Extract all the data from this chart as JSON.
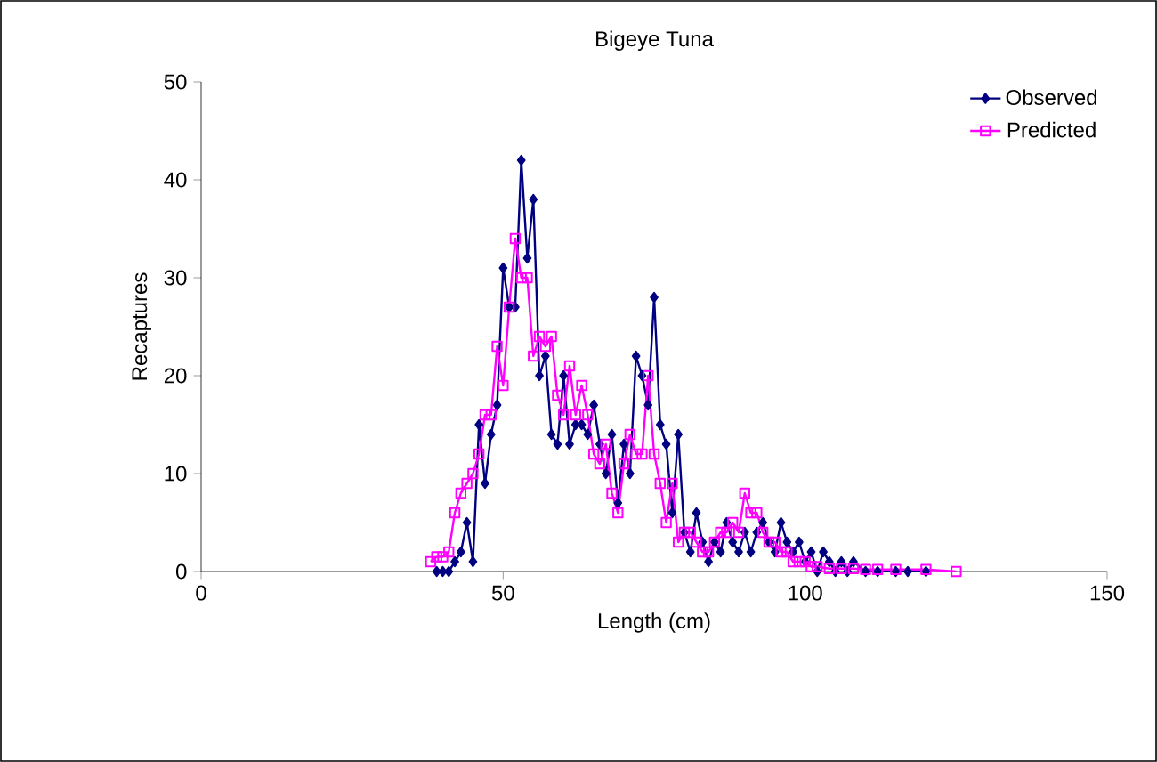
{
  "chart_data": {
    "type": "line",
    "title": "Bigeye Tuna",
    "xlabel": "Length (cm)",
    "ylabel": "Recaptures",
    "xlim": [
      0,
      150
    ],
    "xticks": [
      0,
      50,
      100,
      150
    ],
    "ylim": [
      0,
      50
    ],
    "yticks": [
      0,
      10,
      20,
      30,
      40,
      50
    ],
    "grid": false,
    "legend": "top right",
    "series": [
      {
        "name": "Observed",
        "color": "#000080",
        "marker": "diamond",
        "x": [
          39,
          40,
          41,
          42,
          43,
          44,
          45,
          46,
          47,
          48,
          49,
          50,
          51,
          52,
          53,
          54,
          55,
          56,
          57,
          58,
          59,
          60,
          61,
          62,
          63,
          64,
          65,
          66,
          67,
          68,
          69,
          70,
          71,
          72,
          73,
          74,
          75,
          76,
          77,
          78,
          79,
          80,
          81,
          82,
          83,
          84,
          85,
          86,
          87,
          88,
          89,
          90,
          91,
          92,
          93,
          94,
          95,
          96,
          97,
          98,
          99,
          100,
          101,
          102,
          103,
          104,
          105,
          106,
          107,
          108,
          110,
          112,
          115,
          117,
          120
        ],
        "values": [
          0,
          0,
          0,
          1,
          2,
          5,
          1,
          15,
          9,
          14,
          17,
          31,
          27,
          27,
          42,
          32,
          38,
          20,
          22,
          14,
          13,
          20,
          13,
          15,
          15,
          14,
          17,
          13,
          10,
          14,
          7,
          13,
          10,
          22,
          20,
          17,
          28,
          15,
          13,
          6,
          14,
          4,
          2,
          6,
          3,
          1,
          3,
          2,
          5,
          3,
          2,
          4,
          2,
          4,
          5,
          3,
          2,
          5,
          3,
          2,
          3,
          1,
          2,
          0,
          2,
          1,
          0,
          1,
          0,
          1,
          0,
          0,
          0,
          0,
          0
        ]
      },
      {
        "name": "Predicted",
        "color": "#ff00ff",
        "marker": "square",
        "x": [
          38,
          39,
          40,
          41,
          42,
          43,
          44,
          45,
          46,
          47,
          48,
          49,
          50,
          51,
          52,
          53,
          54,
          55,
          56,
          57,
          58,
          59,
          60,
          61,
          62,
          63,
          64,
          65,
          66,
          67,
          68,
          69,
          70,
          71,
          72,
          73,
          74,
          75,
          76,
          77,
          78,
          79,
          80,
          81,
          82,
          83,
          84,
          85,
          86,
          87,
          88,
          89,
          90,
          91,
          92,
          93,
          94,
          95,
          96,
          97,
          98,
          99,
          100,
          101,
          102,
          104,
          106,
          108,
          110,
          112,
          115,
          120,
          125
        ],
        "values": [
          1,
          1.5,
          1.5,
          2,
          6,
          8,
          9,
          10,
          12,
          16,
          16,
          23,
          19,
          27,
          34,
          30,
          30,
          22,
          24,
          23,
          24,
          18,
          16,
          21,
          16,
          19,
          16,
          12,
          11,
          13,
          8,
          6,
          11,
          14,
          12,
          12,
          20,
          12,
          9,
          5,
          9,
          3,
          4,
          4,
          3,
          2,
          2,
          3,
          4,
          4,
          5,
          4,
          8,
          6,
          6,
          4,
          3,
          3,
          2,
          2,
          1,
          1,
          1,
          0.5,
          0.5,
          0.3,
          0.3,
          0.3,
          0.2,
          0.2,
          0.2,
          0.2,
          0
        ]
      }
    ]
  }
}
